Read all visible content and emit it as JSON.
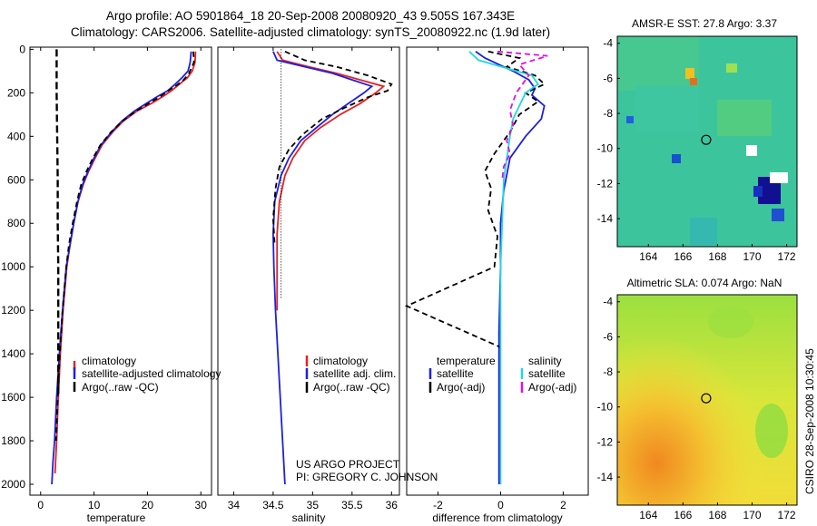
{
  "header": {
    "line1": "Argo profile: AO 5901864_18 20-Sep-2008 20080920_43 9.505S 167.343E",
    "line2": "Climatology: CARS2006. Satellite-adjusted climatology: synTS_20080922.nc (1.9d later)"
  },
  "side_label": "CSIRO 28-Sep-2008 10:30:45",
  "credit": {
    "line1": "US ARGO PROJECT",
    "line2": "PI: GREGORY C. JOHNSON"
  },
  "colors": {
    "climatology": "#e52222",
    "satellite": "#1f1fe0",
    "argo": "#000000",
    "sat_diff": "#22d8e0",
    "argo_adj_diff": "#e010e0"
  },
  "chart_data": [
    {
      "type": "line",
      "title": "",
      "xlabel": "temperature",
      "ylabel": "",
      "xlim": [
        -2,
        32
      ],
      "ylim": [
        2050,
        -10
      ],
      "xticks": [
        0,
        10,
        20,
        30
      ],
      "yticks": [
        0,
        200,
        400,
        600,
        800,
        1000,
        1200,
        1400,
        1600,
        1800,
        2000
      ],
      "legend": {
        "position": "bottom-right",
        "entries": [
          "climatology",
          "satellite-adjusted climatology",
          "Argo(..raw -QC)"
        ]
      },
      "series": [
        {
          "name": "climatology",
          "style": "solid",
          "color_key": "climatology",
          "x": [
            29.0,
            28.9,
            28.4,
            27.5,
            26.0,
            24.5,
            23.0,
            21.0,
            18.0,
            15.5,
            13.5,
            11.5,
            10.2,
            9.0,
            8.0,
            7.0,
            6.2,
            5.5,
            4.9,
            4.2,
            3.7,
            3.3,
            3.0,
            2.8,
            2.7
          ],
          "y": [
            10,
            60,
            100,
            130,
            160,
            190,
            215,
            245,
            285,
            330,
            380,
            440,
            500,
            560,
            620,
            700,
            800,
            900,
            1000,
            1200,
            1400,
            1600,
            1800,
            1900,
            1950
          ]
        },
        {
          "name": "satellite-adjusted climatology",
          "style": "solid",
          "color_key": "satellite",
          "x": [
            28.2,
            28.0,
            27.6,
            26.5,
            25.2,
            23.8,
            22.0,
            20.0,
            17.5,
            15.2,
            13.3,
            11.3,
            10.0,
            8.9,
            7.9,
            7.0,
            6.2,
            5.5,
            4.8,
            4.1,
            3.5,
            3.0,
            2.6,
            2.3,
            2.1
          ],
          "y": [
            10,
            60,
            100,
            130,
            160,
            190,
            215,
            245,
            285,
            330,
            380,
            440,
            500,
            560,
            620,
            700,
            800,
            900,
            1000,
            1200,
            1400,
            1600,
            1800,
            1900,
            2000
          ]
        },
        {
          "name": "Argo(..raw -QC)",
          "style": "dashed",
          "color_key": "argo",
          "x": [
            28.6,
            28.7,
            27.8,
            26.8,
            25.5,
            24.5,
            22.5,
            20.5,
            17.8,
            15.3,
            13.2,
            11.2,
            9.8,
            8.6,
            7.6,
            6.8,
            6.0,
            5.3,
            4.8,
            4.1,
            3.6,
            3.2,
            2.9
          ],
          "y": [
            10,
            60,
            110,
            140,
            165,
            180,
            215,
            245,
            285,
            330,
            380,
            440,
            500,
            560,
            620,
            700,
            800,
            900,
            1000,
            1200,
            1400,
            1600,
            1800
          ]
        },
        {
          "name": "Argo reference",
          "style": "dashed-thick",
          "color_key": "argo",
          "x": [
            3.0,
            3.0,
            3.1,
            3.2,
            3.2,
            3.3,
            3.3,
            3.3
          ],
          "y": [
            0,
            200,
            400,
            600,
            800,
            1000,
            1200,
            1600
          ]
        }
      ]
    },
    {
      "type": "line",
      "title": "",
      "xlabel": "salinity",
      "ylabel": "",
      "xlim": [
        33.8,
        36.1
      ],
      "ylim": [
        2050,
        -10
      ],
      "xticks": [
        34,
        34.5,
        35,
        35.5,
        36
      ],
      "yticks": [],
      "legend": {
        "position": "bottom-right",
        "entries": [
          "climatology",
          "satellite adj. clim.",
          "Argo(..raw -QC)"
        ]
      },
      "series": [
        {
          "name": "climatology",
          "style": "solid",
          "color_key": "climatology",
          "x": [
            34.55,
            34.62,
            34.95,
            35.3,
            35.6,
            35.9,
            35.8,
            35.6,
            35.35,
            35.1,
            34.9,
            34.75,
            34.65,
            34.58,
            34.55,
            34.55,
            34.55
          ],
          "y": [
            10,
            50,
            80,
            110,
            140,
            170,
            200,
            250,
            300,
            360,
            420,
            500,
            580,
            700,
            850,
            1000,
            1200
          ]
        },
        {
          "name": "satellite adj. clim.",
          "style": "solid",
          "color_key": "satellite",
          "x": [
            34.5,
            34.55,
            34.9,
            35.25,
            35.5,
            35.75,
            35.65,
            35.45,
            35.25,
            35.05,
            34.85,
            34.7,
            34.6,
            34.52,
            34.5,
            34.51,
            34.53,
            34.56,
            34.59,
            34.62,
            34.65
          ],
          "y": [
            10,
            50,
            80,
            110,
            140,
            170,
            200,
            250,
            300,
            360,
            420,
            500,
            580,
            700,
            850,
            1000,
            1200,
            1400,
            1600,
            1800,
            2000
          ]
        },
        {
          "name": "Argo(..raw -QC)",
          "style": "dashed",
          "color_key": "argo",
          "x": [
            34.65,
            34.9,
            35.3,
            35.7,
            36.0,
            35.95,
            35.7,
            35.4,
            35.12,
            34.88,
            34.7,
            34.58,
            34.53,
            34.5,
            34.52
          ],
          "y": [
            10,
            50,
            80,
            120,
            160,
            190,
            220,
            270,
            320,
            390,
            460,
            540,
            640,
            780,
            900
          ]
        },
        {
          "name": "reference",
          "style": "dotted",
          "color_key": "argo",
          "x": [
            34.6,
            34.6
          ],
          "y": [
            0,
            1150
          ]
        }
      ]
    },
    {
      "type": "line",
      "title": "",
      "xlabel": "difference from climatology",
      "ylabel": "",
      "xlim": [
        -3,
        2.8
      ],
      "ylim": [
        2050,
        -10
      ],
      "xticks": [
        -2,
        0,
        2
      ],
      "yticks": [],
      "legend": {
        "position": "bottom",
        "entries": [
          "temperature",
          "satellite",
          "Argo(-adj)",
          "salinity",
          "satellite",
          "Argo(-adj)"
        ]
      },
      "series": [
        {
          "name": "temperature satellite",
          "style": "solid",
          "color_key": "satellite",
          "x": [
            -0.8,
            -0.5,
            0.4,
            0.9,
            1.1,
            1.0,
            1.4,
            1.3,
            0.8,
            0.3,
            0.1,
            0.0,
            0.0,
            -0.05,
            -0.05,
            -0.05,
            -0.05
          ],
          "y": [
            10,
            40,
            100,
            140,
            180,
            210,
            260,
            320,
            400,
            500,
            650,
            800,
            1000,
            1300,
            1600,
            1800,
            2000
          ]
        },
        {
          "name": "temperature Argo(-adj)",
          "style": "dashed",
          "color_key": "argo",
          "x": [
            -0.4,
            0.6,
            0.2,
            1.1,
            1.4,
            0.8,
            1.2,
            0.6,
            0.3,
            -0.2,
            -0.5,
            -0.3,
            -0.4,
            -0.1,
            -0.2,
            -3.0,
            0.0
          ],
          "y": [
            10,
            40,
            80,
            120,
            160,
            200,
            240,
            300,
            380,
            480,
            560,
            640,
            740,
            860,
            1000,
            1180,
            1370
          ]
        },
        {
          "name": "salinity satellite",
          "style": "solid",
          "color_key": "sat_diff",
          "x": [
            -1.0,
            -0.7,
            1.0,
            1.2,
            0.8,
            0.6,
            0.4,
            0.3,
            0.2,
            0.1,
            0.05,
            0.0,
            0.0,
            0.0,
            0.0
          ],
          "y": [
            10,
            50,
            120,
            160,
            200,
            260,
            320,
            400,
            500,
            600,
            800,
            1000,
            1300,
            1600,
            2000
          ]
        },
        {
          "name": "salinity Argo(-adj)",
          "style": "dashed",
          "color_key": "argo_adj_diff",
          "x": [
            -0.1,
            1.5,
            0.6,
            0.9,
            0.5,
            0.3,
            0.4,
            0.2,
            0.3,
            0.1,
            0.05
          ],
          "y": [
            10,
            30,
            70,
            120,
            200,
            280,
            350,
            420,
            480,
            540,
            600
          ]
        }
      ]
    },
    {
      "type": "heatmap",
      "title": "AMSR-E SST: 27.8 Argo: 3.37",
      "xlabel": "",
      "ylabel": "",
      "xlim": [
        162.2,
        172.6
      ],
      "ylim": [
        -15.6,
        -3.6
      ],
      "xticks": [
        164,
        166,
        168,
        170,
        172
      ],
      "yticks": [
        -4,
        -6,
        -8,
        -10,
        -12,
        -14
      ],
      "marker": {
        "lon": 167.343,
        "lat": -9.505
      }
    },
    {
      "type": "heatmap",
      "title": "Altimetric SLA: 0.074 Argo: NaN",
      "xlabel": "",
      "ylabel": "",
      "xlim": [
        162.2,
        172.6
      ],
      "ylim": [
        -15.6,
        -3.6
      ],
      "xticks": [
        164,
        166,
        168,
        170,
        172
      ],
      "yticks": [
        -4,
        -6,
        -8,
        -10,
        -12,
        -14
      ],
      "marker": {
        "lon": 167.343,
        "lat": -9.505
      }
    }
  ]
}
